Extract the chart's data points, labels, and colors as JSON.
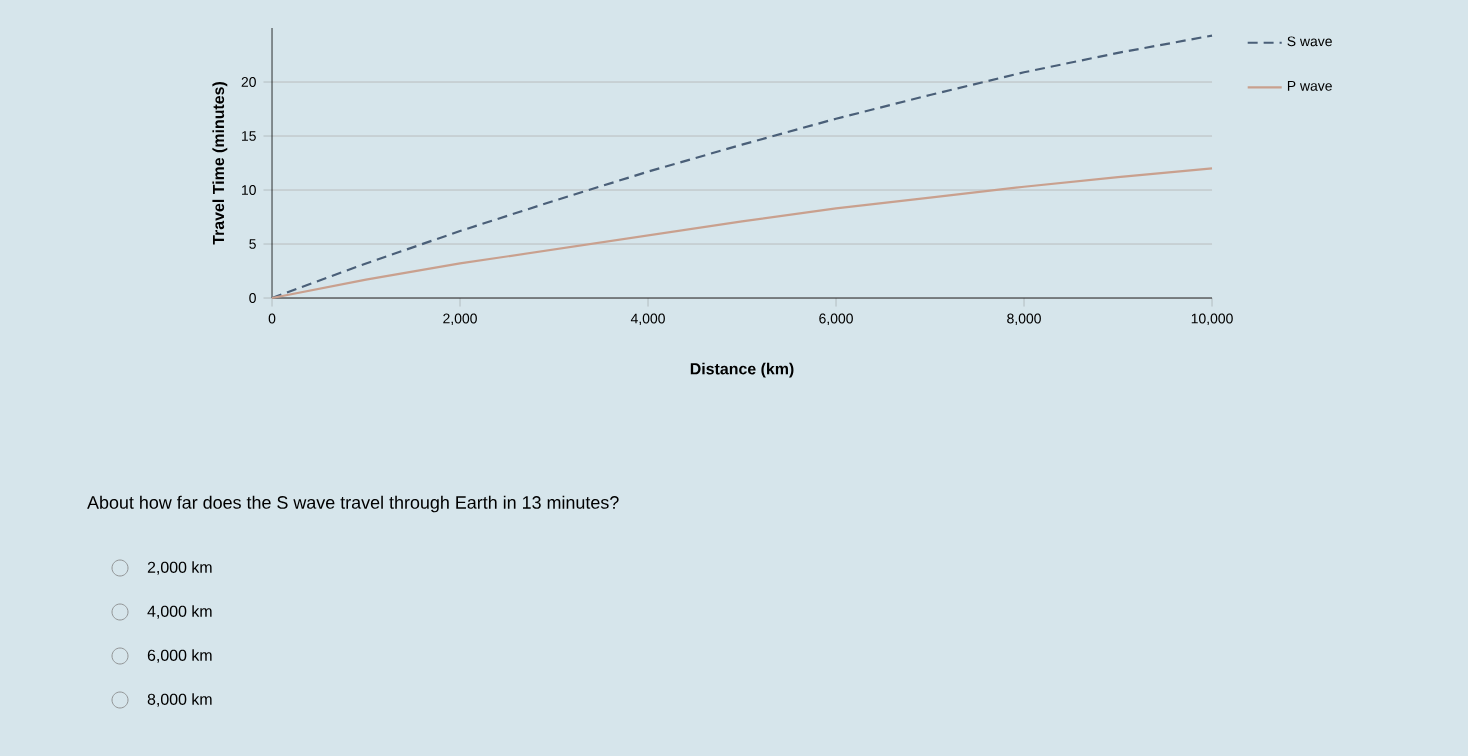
{
  "chart_data": {
    "type": "line",
    "xlabel": "Distance (km)",
    "ylabel": "Travel Time (minutes)",
    "x": [
      0,
      1000,
      2000,
      3000,
      4000,
      5000,
      6000,
      7000,
      8000,
      9000,
      10000
    ],
    "series": [
      {
        "name": "S wave",
        "color": "#4a5f78",
        "line_style": "dashed",
        "values": [
          0,
          3.2,
          6.2,
          9,
          11.7,
          14.2,
          16.6,
          18.8,
          20.9,
          22.7,
          24.3
        ]
      },
      {
        "name": "P wave",
        "color": "#c9a08e",
        "line_style": "solid",
        "values": [
          0,
          1.7,
          3.2,
          4.5,
          5.8,
          7.1,
          8.3,
          9.3,
          10.3,
          11.2,
          12
        ]
      }
    ],
    "xlim": [
      0,
      10000
    ],
    "ylim": [
      0,
      25
    ],
    "xticks": [
      0,
      {
        "value": 2000,
        "label": "2,000"
      },
      {
        "value": 4000,
        "label": "4,000"
      },
      {
        "value": 6000,
        "label": "6,000"
      },
      {
        "value": 8000,
        "label": "8,000"
      },
      {
        "value": 10000,
        "label": "10,000"
      }
    ],
    "yticks": [
      0,
      5,
      10,
      15,
      20
    ],
    "grid": "y",
    "legend": "right",
    "annotations": [
      "About how far does the S wave travel through Earth in 13 minutes?",
      "2,000 km",
      "4,000 km",
      "6,000 km",
      "8,000 km"
    ]
  }
}
